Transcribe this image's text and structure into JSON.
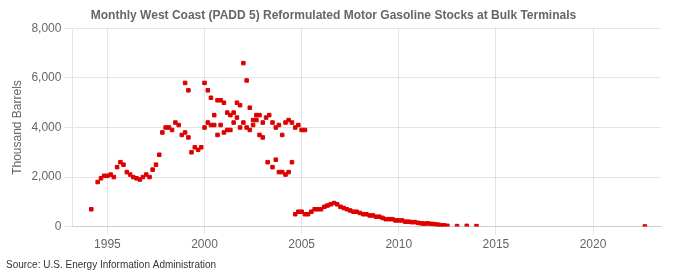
{
  "chart_data": {
    "type": "scatter",
    "title": "Monthly West Coast (PADD 5) Reformulated Motor Gasoline Stocks at Bulk Terminals",
    "ylabel": "Thousand Barrels",
    "annotation": "Source: U.S. Energy Information Administration",
    "color": "#dd0000",
    "marker": "square",
    "grid": true,
    "xlim": [
      1993.2,
      2023.5
    ],
    "xticks": [
      1995,
      2000,
      2005,
      2010,
      2015,
      2020
    ],
    "ylim": [
      0,
      8000
    ],
    "yticks": [
      0,
      {
        "value": 2000,
        "label": "2,000"
      },
      {
        "value": 4000,
        "label": "4,000"
      },
      {
        "value": 6000,
        "label": "6,000"
      },
      {
        "value": 8000,
        "label": "8,000"
      }
    ],
    "x": [
      1994.17,
      1994.5,
      1994.67,
      1994.83,
      1995.0,
      1995.17,
      1995.33,
      1995.5,
      1995.67,
      1995.83,
      1996.0,
      1996.17,
      1996.33,
      1996.5,
      1996.67,
      1996.83,
      1997.0,
      1997.17,
      1997.33,
      1997.5,
      1997.67,
      1997.83,
      1998.0,
      1998.17,
      1998.33,
      1998.5,
      1998.67,
      1998.83,
      1999.0,
      1999.17,
      1999.33,
      1999.5,
      1999.67,
      1999.83,
      2000.0,
      2000.17,
      2000.33,
      2000.5,
      2000.67,
      2000.83,
      2001.0,
      2001.17,
      2001.33,
      2001.5,
      2001.67,
      2001.83,
      2002.0,
      2002.17,
      2002.33,
      2002.5,
      2002.67,
      2002.83,
      2003.0,
      1999.0,
      1999.17,
      2000.0,
      2000.17,
      2000.33,
      2000.5,
      2000.67,
      2000.83,
      2001.0,
      2001.17,
      2001.33,
      2001.5,
      2001.67,
      2001.83,
      2002.0,
      2002.17,
      2002.33,
      2002.5,
      2002.67,
      2002.83,
      2003.0,
      2003.17,
      2003.33,
      2003.5,
      2003.67,
      2003.83,
      2004.0,
      2004.17,
      2004.33,
      2004.5,
      2004.67,
      2004.83,
      2005.0,
      2005.17,
      2003.25,
      2003.5,
      2003.67,
      2003.83,
      2004.0,
      2004.17,
      2004.33,
      2004.5,
      2004.67,
      2004.83,
      2005.0,
      2005.17,
      2005.33,
      2005.5,
      2005.67,
      2005.83,
      2006.0,
      2006.17,
      2006.33,
      2006.5,
      2006.67,
      2006.83,
      2007.0,
      2007.17,
      2007.33,
      2007.5,
      2007.67,
      2007.83,
      2008.0,
      2008.17,
      2008.33,
      2008.5,
      2008.67,
      2008.83,
      2009.0,
      2009.17,
      2009.33,
      2009.5,
      2009.67,
      2009.83,
      2010.0,
      2010.17,
      2010.33,
      2010.5,
      2010.67,
      2010.83,
      2011.0,
      2011.17,
      2011.33,
      2011.5,
      2011.67,
      2011.83,
      2012.0,
      2012.17,
      2012.33,
      2012.5,
      2013.0,
      2013.5,
      2014.0,
      2022.67
    ],
    "values": [
      700,
      1800,
      1950,
      2050,
      2050,
      2100,
      2000,
      2400,
      2600,
      2500,
      2200,
      2100,
      2000,
      1950,
      1900,
      2000,
      2100,
      2000,
      2300,
      2500,
      2900,
      3800,
      4000,
      4000,
      3900,
      4200,
      4100,
      3700,
      3800,
      3600,
      3000,
      3200,
      3100,
      3200,
      4000,
      4200,
      4100,
      4100,
      3700,
      4100,
      3800,
      3900,
      3900,
      4200,
      4400,
      4000,
      4200,
      4000,
      3900,
      4100,
      4300,
      3700,
      3600,
      5800,
      5500,
      5800,
      5500,
      5200,
      4500,
      5100,
      5100,
      5000,
      4600,
      4500,
      4600,
      5000,
      4900,
      6600,
      5900,
      4800,
      4300,
      4500,
      4500,
      4200,
      4400,
      4500,
      4200,
      4000,
      4100,
      3700,
      4200,
      4300,
      4200,
      4000,
      4100,
      3900,
      3900,
      2600,
      2400,
      2700,
      2200,
      2200,
      2100,
      2200,
      2600,
      500,
      600,
      600,
      500,
      500,
      600,
      700,
      700,
      700,
      800,
      850,
      900,
      950,
      900,
      800,
      750,
      700,
      650,
      600,
      600,
      550,
      500,
      500,
      450,
      450,
      400,
      400,
      350,
      300,
      300,
      300,
      250,
      250,
      250,
      200,
      200,
      180,
      180,
      150,
      130,
      120,
      130,
      110,
      100,
      80,
      60,
      50,
      30,
      20,
      30,
      20,
      5
    ]
  }
}
